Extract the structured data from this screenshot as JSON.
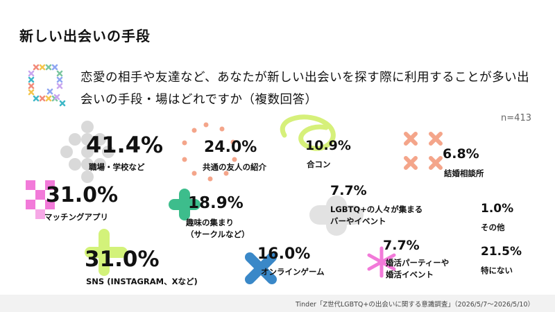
{
  "title": "新しい出会いの手段",
  "question": "恋愛の相手や友達など、あなたが新しい出会いを探す際に利用することが多い出会いの手段・場はどれですか（複数回答）",
  "sample": "n=413",
  "source": "Tinder「Z世代LGBTQ+の出会いに関する意識調査」（2026/5/7〜2026/5/10）",
  "colors": {
    "q_icon": [
      "#f28b7a",
      "#f4c64f",
      "#7bc6a0",
      "#8fa7f2",
      "#c9a6f0",
      "#3fb8c8"
    ],
    "workplace": "#d6d6d6",
    "friends": "#f4a58a",
    "goukon": "#c7e94b",
    "agency": "#f4a58a",
    "apps": "#f27ad9",
    "hobby": "#3dbd8c",
    "lgbtq_bar": "#e0e0e0",
    "sns": "#d3f27a",
    "online_game": "#3a88c8",
    "party": "#f27ad9"
  },
  "chart_data": {
    "type": "bubble-list",
    "items": [
      {
        "label": "職場・学校など",
        "value": 41.4,
        "pct": "41.4%"
      },
      {
        "label": "共通の友人の紹介",
        "value": 24.0,
        "pct": "24.0%"
      },
      {
        "label": "合コン",
        "value": 10.9,
        "pct": "10.9%"
      },
      {
        "label": "結婚相談所",
        "value": 6.8,
        "pct": "6.8%"
      },
      {
        "label": "マッチングアプリ",
        "value": 31.0,
        "pct": "31.0%"
      },
      {
        "label": "趣味の集まり\n（サークルなど）",
        "value": 18.9,
        "pct": "18.9%"
      },
      {
        "label": "LGBTQ+の人々が集まる\nバーやイベント",
        "value": 7.7,
        "pct": "7.7%"
      },
      {
        "label": "その他",
        "value": 1.0,
        "pct": "1.0%"
      },
      {
        "label": "SNS (INSTAGRAM、Xなど)",
        "value": 31.0,
        "pct": "31.0%"
      },
      {
        "label": "オンラインゲーム",
        "value": 16.0,
        "pct": "16.0%"
      },
      {
        "label": "婚活パーティーや\n婚活イベント",
        "value": 7.7,
        "pct": "7.7%"
      },
      {
        "label": "特にない",
        "value": 21.5,
        "pct": "21.5%"
      }
    ]
  }
}
